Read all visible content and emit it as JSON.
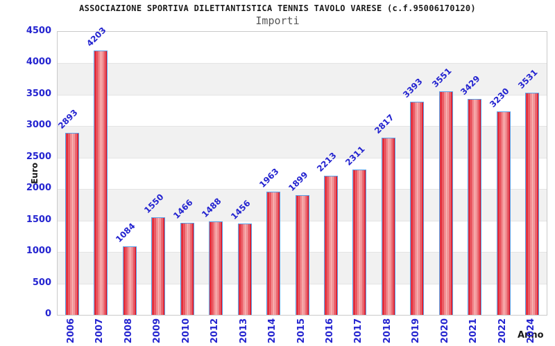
{
  "chart_data": {
    "type": "bar",
    "title": "ASSOCIAZIONE SPORTIVA DILETTANTISTICA TENNIS TAVOLO VARESE (c.f.95006170120)",
    "subtitle": "Importi",
    "xlabel": "Anno",
    "ylabel": "Euro",
    "categories": [
      "2006",
      "2007",
      "2008",
      "2009",
      "2010",
      "2012",
      "2013",
      "2014",
      "2015",
      "2016",
      "2017",
      "2018",
      "2019",
      "2020",
      "2021",
      "2022",
      "2024"
    ],
    "values": [
      2893,
      4203,
      1084,
      1550,
      1466,
      1488,
      1456,
      1963,
      1899,
      2213,
      2311,
      2817,
      3393,
      3551,
      3429,
      3230,
      3531
    ],
    "ylim": [
      0,
      4500
    ],
    "ytick_step": 500,
    "yticks": [
      0,
      500,
      1000,
      1500,
      2000,
      2500,
      3000,
      3500,
      4000,
      4500
    ],
    "grid": "horizontal-bands-alternating",
    "legend": "none",
    "colors": {
      "bar_edge": "#de0f20",
      "bar_center": "#f7a9a9",
      "bar_border": "#57a0e8",
      "axis_text": "#2424d0",
      "band_gray": "#f1f1f1",
      "band_white": "#ffffff",
      "plot_border": "#c9c9c9",
      "title_text": "#1a1a1a",
      "subtitle_text": "#555555"
    }
  }
}
